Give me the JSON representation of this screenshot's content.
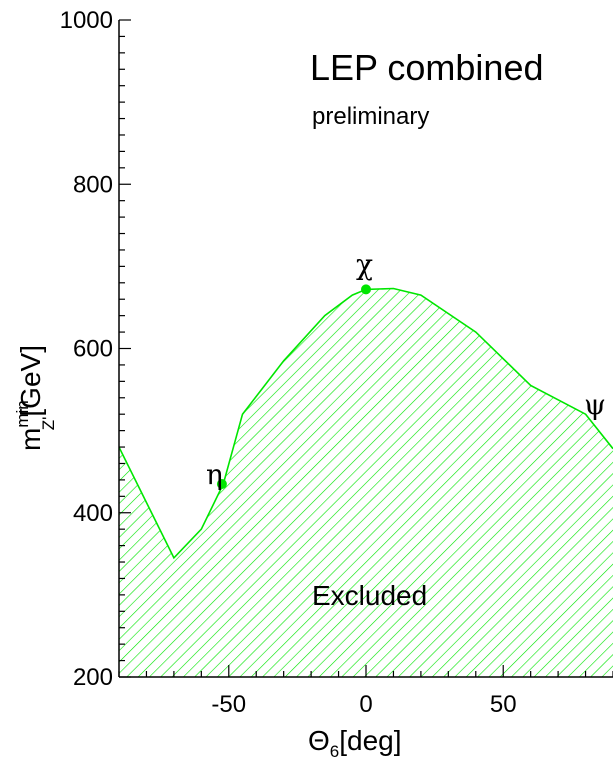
{
  "chart_data": {
    "type": "area",
    "title": "LEP combined",
    "subtitle": "preliminary",
    "xlabel": {
      "main": "Θ",
      "sub": "6",
      "rest": "[deg]"
    },
    "ylabel": {
      "main": "m",
      "sup": "min",
      "sub": "Z'",
      "rest": "[GeV]"
    },
    "xlim": [
      -90,
      90
    ],
    "ylim": [
      200,
      1000
    ],
    "x_ticks": [
      -50,
      0,
      50
    ],
    "y_ticks": [
      200,
      400,
      600,
      800,
      1000
    ],
    "region_label": "Excluded",
    "boundary": {
      "x": [
        -90,
        -70,
        -60,
        -52,
        -45,
        -30,
        -15,
        -5,
        0,
        10,
        20,
        40,
        60,
        80,
        90
      ],
      "y": [
        480,
        345,
        380,
        435,
        520,
        585,
        640,
        665,
        672,
        673,
        665,
        620,
        555,
        520,
        478
      ]
    },
    "models": [
      {
        "name": "η",
        "x": -52.5,
        "y": 435
      },
      {
        "name": "χ",
        "x": 0,
        "y": 672
      },
      {
        "name": "ψ",
        "x": 90,
        "y": 480
      }
    ],
    "colors": {
      "fill": "#00e600",
      "line": "#00e600",
      "marker": "#00e600",
      "axis": "#000000"
    }
  }
}
